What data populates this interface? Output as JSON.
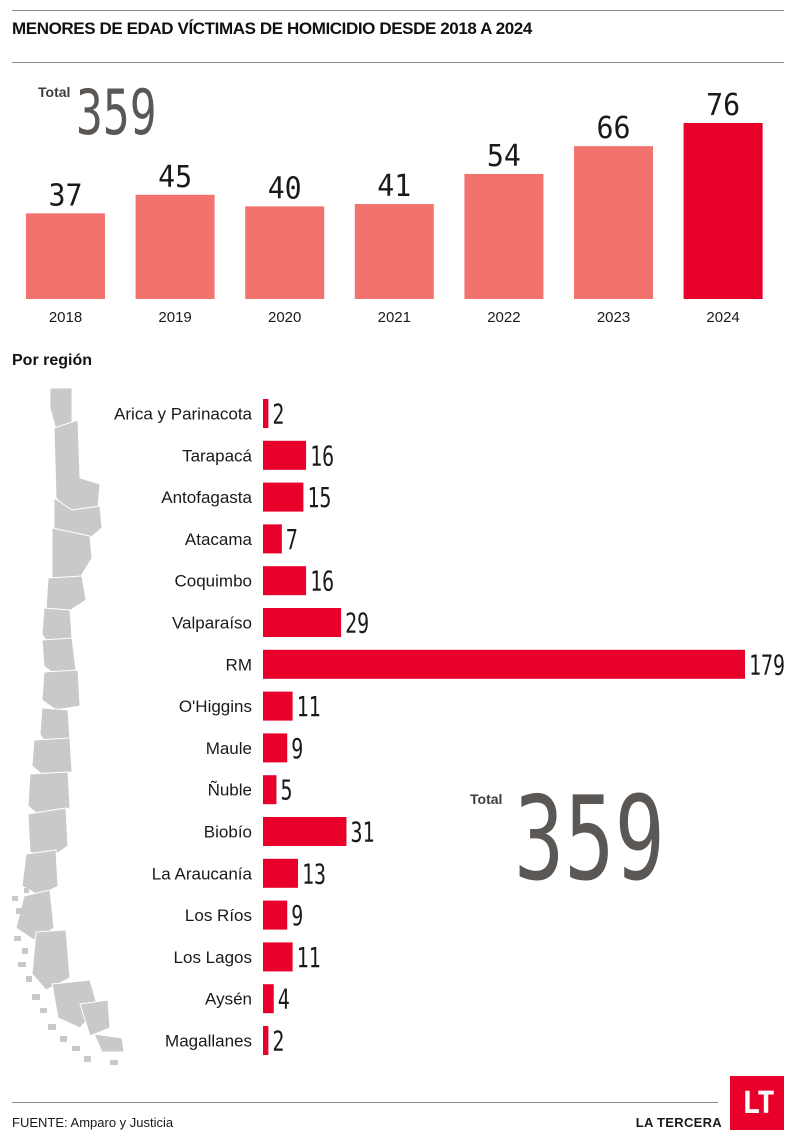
{
  "title": "MENORES DE EDAD VÍCTIMAS DE HOMICIDIO DESDE 2018 A 2024",
  "total": {
    "label": "Total",
    "value": "359"
  },
  "region_heading": "Por región",
  "source": {
    "label": "FUENTE:",
    "text": "Amparo y Justicia"
  },
  "brand": {
    "name": "LA TERCERA",
    "logo_text": "LT"
  },
  "colors": {
    "bar": "#f2736d",
    "highlight": "#e8002b",
    "total": "#5a5754"
  },
  "map_icon": "chile-map",
  "chart_data": [
    {
      "type": "bar",
      "title": "MENORES DE EDAD VÍCTIMAS DE HOMICIDIO DESDE 2018 A 2024",
      "categories": [
        "2018",
        "2019",
        "2020",
        "2021",
        "2022",
        "2023",
        "2024"
      ],
      "values": [
        37,
        45,
        40,
        41,
        54,
        66,
        76
      ],
      "highlight_category": "2024",
      "ylim": [
        0,
        76
      ],
      "grid": false,
      "data_labels": true
    },
    {
      "type": "bar",
      "orientation": "horizontal",
      "title": "Por región",
      "categories": [
        "Arica y Parinacota",
        "Tarapacá",
        "Antofagasta",
        "Atacama",
        "Coquimbo",
        "Valparaíso",
        "RM",
        "O'Higgins",
        "Maule",
        "Ñuble",
        "Biobío",
        "La Araucanía",
        "Los Ríos",
        "Los Lagos",
        "Aysén",
        "Magallanes"
      ],
      "values": [
        2,
        16,
        15,
        7,
        16,
        29,
        179,
        11,
        9,
        5,
        31,
        13,
        9,
        11,
        4,
        2
      ],
      "xlim": [
        0,
        179
      ],
      "grid": false,
      "data_labels": true
    }
  ]
}
